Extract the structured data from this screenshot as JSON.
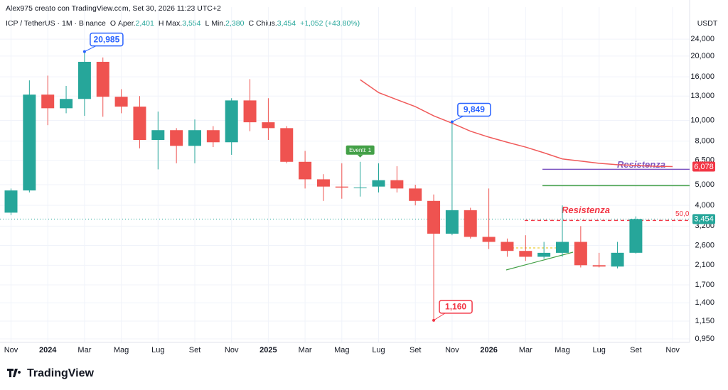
{
  "header": "Alex975 creato con TradingView.com, Set 30, 2026 11:23 UTC+2",
  "legend": {
    "symbol": "ICP / TetherUS · 1M · Binance",
    "items": [
      {
        "key": "O",
        "name": "Aper.",
        "value": "2,401"
      },
      {
        "key": "H",
        "name": "Max.",
        "value": "3,554"
      },
      {
        "key": "L",
        "name": "Min.",
        "value": "2,380"
      },
      {
        "key": "C",
        "name": "Chius.",
        "value": "3,454"
      }
    ],
    "change": "+1,052 (+43,80%)"
  },
  "footer": "TradingView",
  "chart_data": {
    "type": "candlestick",
    "currency": "USDT",
    "log_scale": true,
    "up_color": "#26a69a",
    "down_color": "#ef5350",
    "categories": [
      "Nov",
      null,
      "2024",
      null,
      "Mar",
      null,
      "Mag",
      null,
      "Lug",
      null,
      "Set",
      null,
      "Nov",
      null,
      "2025",
      null,
      "Mar",
      null,
      "Mag",
      null,
      "Lug",
      null,
      "Set",
      null,
      "Nov",
      null,
      "2026",
      null,
      "Mar",
      null,
      "Mag",
      null,
      "Lug",
      null,
      "Set",
      null,
      "Nov"
    ],
    "open": [
      3.7,
      4.7,
      13.2,
      11.4,
      12.6,
      18.8,
      12.9,
      11.6,
      8.1,
      9.0,
      7.6,
      9.0,
      7.9,
      12.4,
      9.8,
      9.2,
      6.4,
      5.3,
      4.9,
      4.85,
      4.9,
      5.25,
      4.8,
      4.2,
      2.95,
      3.8,
      2.85,
      2.7,
      2.45,
      2.3,
      2.4,
      2.7,
      2.1,
      2.07,
      2.401,
      null,
      null
    ],
    "high": [
      4.8,
      15.4,
      16.2,
      14.5,
      20.985,
      19.7,
      14.0,
      13.0,
      11.0,
      9.2,
      10.1,
      9.4,
      12.7,
      15.6,
      12.7,
      9.4,
      7.2,
      5.6,
      6.3,
      6.4,
      6.3,
      6.1,
      5.0,
      4.5,
      9.849,
      3.9,
      4.8,
      2.8,
      2.9,
      2.7,
      4.0,
      3.2,
      2.4,
      2.7,
      3.554,
      null,
      null
    ],
    "low": [
      3.6,
      4.6,
      9.5,
      10.8,
      10.5,
      10.4,
      10.8,
      7.4,
      5.9,
      6.3,
      6.3,
      7.5,
      6.9,
      8.9,
      8.1,
      6.3,
      4.8,
      4.2,
      4.3,
      4.4,
      4.6,
      4.6,
      4.0,
      1.16,
      2.9,
      2.8,
      2.5,
      2.3,
      2.2,
      2.25,
      2.3,
      2.05,
      2.05,
      2.03,
      2.38,
      null,
      null
    ],
    "close": [
      4.7,
      13.2,
      11.4,
      12.6,
      18.8,
      12.9,
      11.6,
      8.1,
      9.0,
      7.6,
      9.0,
      7.9,
      12.4,
      9.8,
      9.2,
      6.4,
      5.3,
      4.9,
      4.85,
      4.85,
      5.25,
      4.8,
      4.2,
      2.95,
      3.8,
      2.85,
      2.7,
      2.45,
      2.3,
      2.4,
      2.7,
      2.1,
      2.07,
      2.401,
      3.454,
      null,
      null
    ],
    "high_labels": [
      null,
      null,
      null,
      null,
      "20,985",
      null,
      null,
      null,
      null,
      null,
      null,
      null,
      null,
      null,
      null,
      null,
      null,
      null,
      null,
      null,
      null,
      null,
      null,
      null,
      "9,849",
      null,
      null,
      null,
      null,
      null,
      null,
      null,
      null,
      null,
      null,
      null,
      null
    ],
    "low_labels": [
      null,
      null,
      null,
      null,
      null,
      null,
      null,
      null,
      null,
      null,
      null,
      null,
      null,
      null,
      null,
      null,
      null,
      null,
      null,
      null,
      null,
      null,
      null,
      "1,160",
      null,
      null,
      null,
      null,
      null,
      null,
      null,
      null,
      null,
      null,
      null,
      null,
      null
    ],
    "close_labels": [
      null,
      null,
      null,
      null,
      null,
      null,
      null,
      null,
      null,
      null,
      null,
      null,
      null,
      null,
      null,
      null,
      null,
      null,
      null,
      null,
      null,
      null,
      null,
      null,
      null,
      null,
      null,
      null,
      null,
      null,
      null,
      null,
      null,
      null,
      "3,454",
      null,
      null
    ],
    "ma": {
      "color": "#f05a5a",
      "values": [
        null,
        null,
        null,
        null,
        null,
        null,
        null,
        null,
        null,
        null,
        null,
        null,
        null,
        null,
        null,
        null,
        null,
        null,
        null,
        15.5,
        13.5,
        12.5,
        11.6,
        10.5,
        9.7,
        8.9,
        8.35,
        7.9,
        7.5,
        7.05,
        6.6,
        6.45,
        6.3,
        6.2,
        6.15,
        6.1,
        6.078
      ],
      "value_labels": [
        null,
        null,
        null,
        null,
        null,
        null,
        null,
        null,
        null,
        null,
        null,
        null,
        null,
        null,
        null,
        null,
        null,
        null,
        null,
        null,
        null,
        null,
        null,
        null,
        null,
        null,
        null,
        null,
        null,
        null,
        null,
        null,
        null,
        null,
        null,
        null,
        "6,078"
      ]
    },
    "events": [
      {
        "index": 19,
        "label": "Eventi: 1"
      }
    ],
    "levels": [
      {
        "value": 5.9,
        "color": "#7e57c2",
        "label": "Resistenza"
      },
      {
        "value": 4.95,
        "color": "#43a047"
      },
      {
        "value": 3.4,
        "color": "#f23645",
        "dashed": true,
        "label": "Resistenza",
        "tag": "50,0"
      }
    ],
    "ylim": [
      0.914,
      33.9
    ],
    "yticks": [
      {
        "value": 24,
        "label": "24,000"
      },
      {
        "value": 20,
        "label": "20,000"
      },
      {
        "value": 16,
        "label": "16,000"
      },
      {
        "value": 13,
        "label": "13,000"
      },
      {
        "value": 10,
        "label": "10,000"
      },
      {
        "value": 8,
        "label": "8,000"
      },
      {
        "value": 6.5,
        "label": "6,500"
      },
      {
        "value": 5,
        "label": "5,000"
      },
      {
        "value": 4,
        "label": "4,000"
      },
      {
        "value": 3.2,
        "label": "3,200"
      },
      {
        "value": 2.6,
        "label": "2,600"
      },
      {
        "value": 2.1,
        "label": "2,100"
      },
      {
        "value": 1.7,
        "label": "1,700"
      },
      {
        "value": 1.4,
        "label": "1,400"
      },
      {
        "value": 1.15,
        "label": "1,150"
      },
      {
        "value": 0.95,
        "label": "0,950"
      }
    ],
    "grid": true
  }
}
